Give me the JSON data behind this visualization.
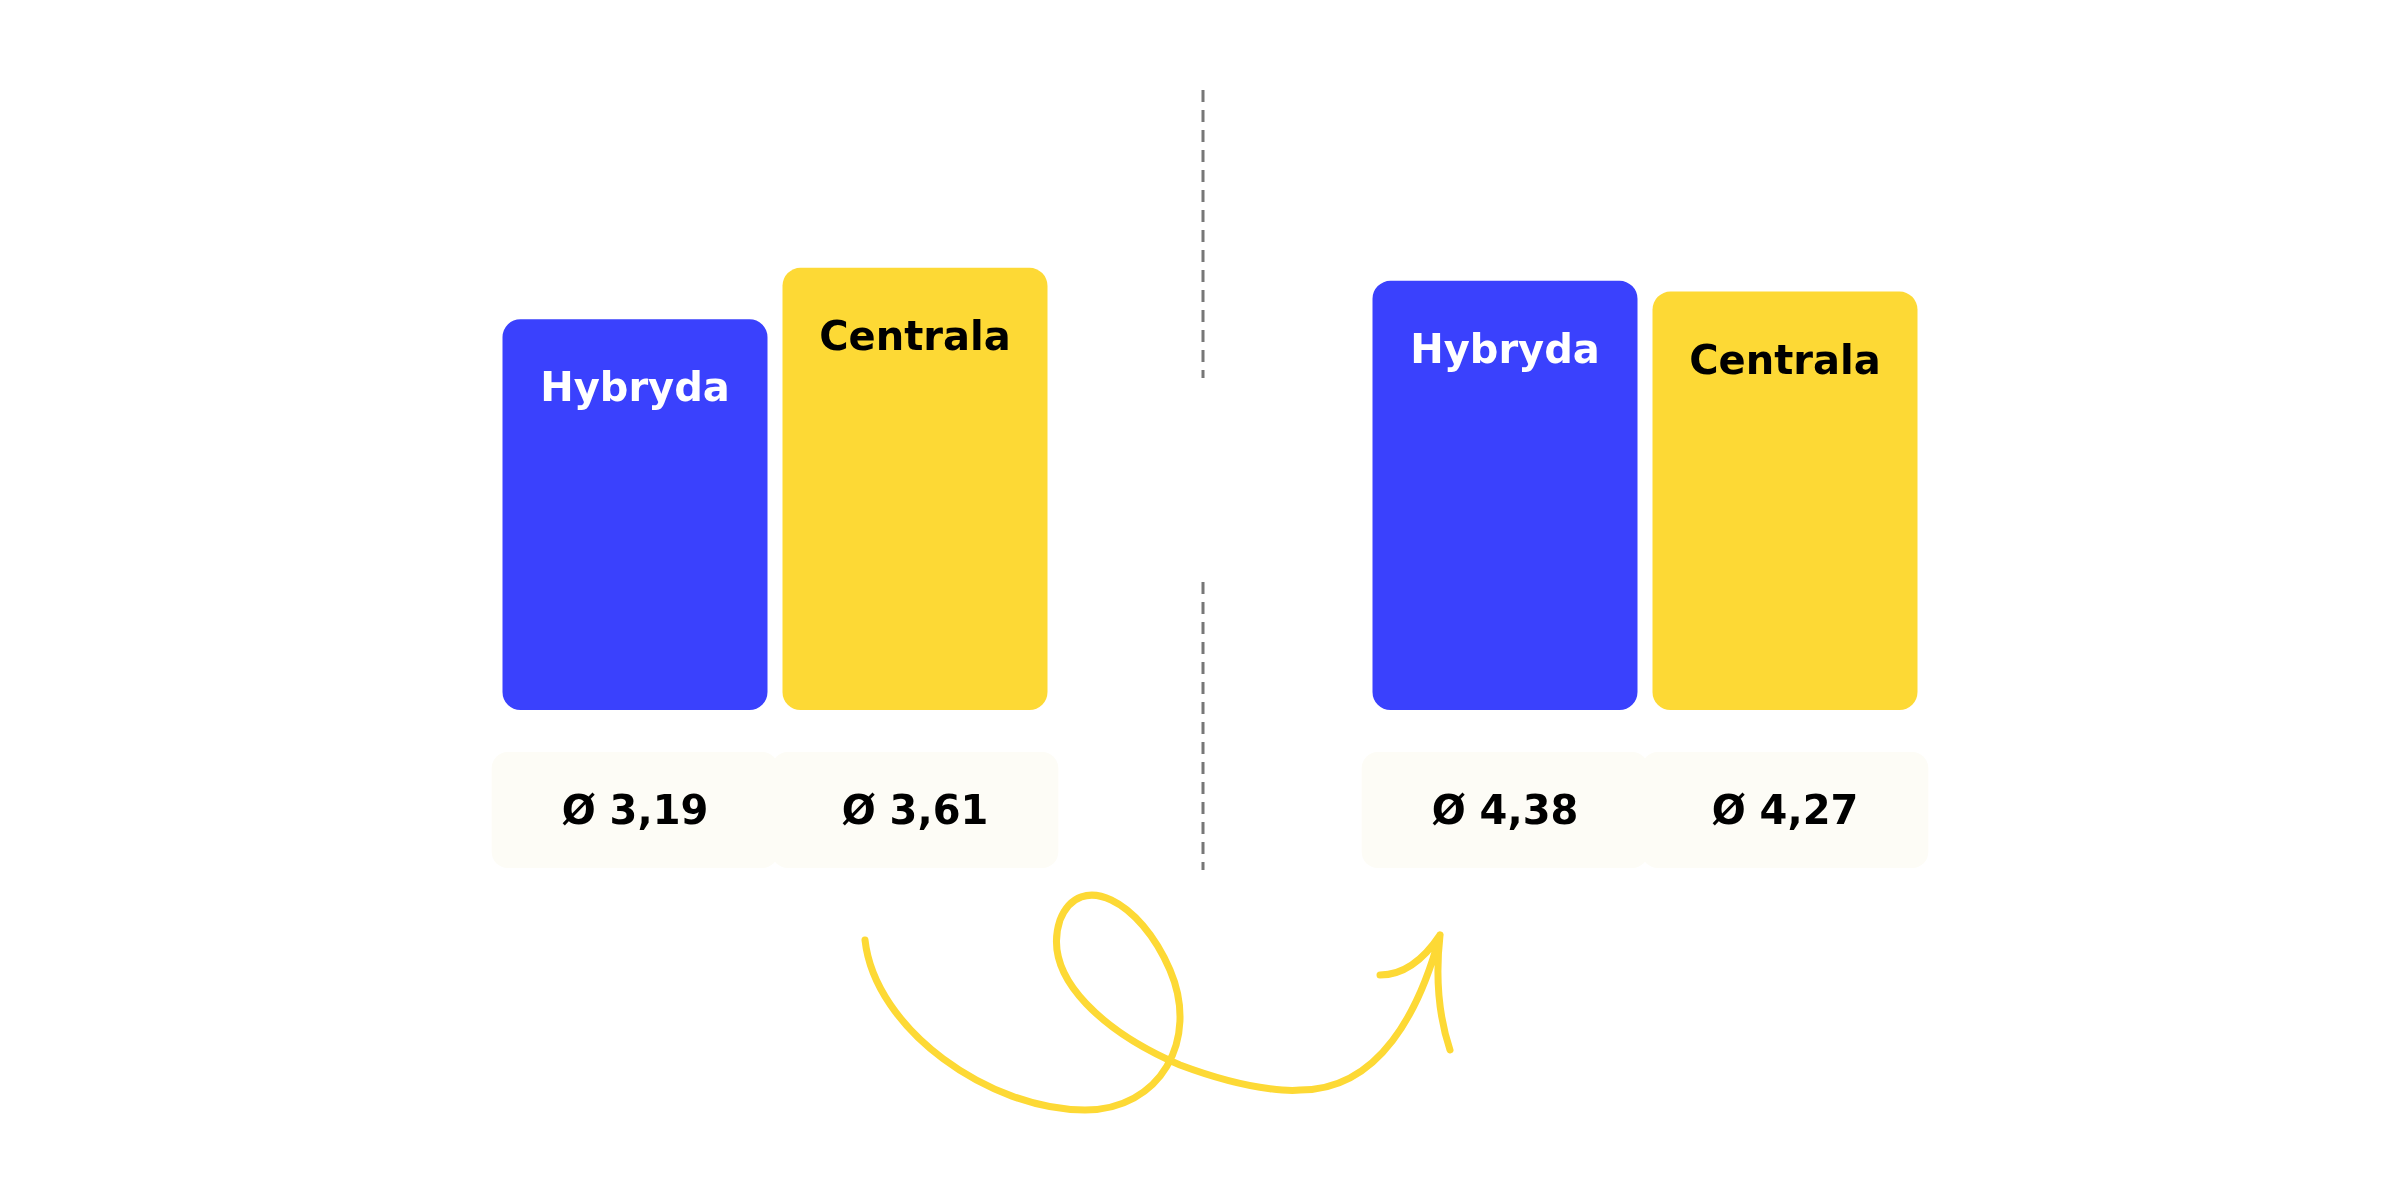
{
  "chart_data": [
    {
      "type": "bar",
      "categories": [
        "Hybryda",
        "Centrala"
      ],
      "values": [
        3.19,
        3.61
      ],
      "colors": [
        "#3a41fd",
        "#fdd935"
      ],
      "value_labels": [
        "Ø 3,19",
        "Ø 3,61"
      ]
    },
    {
      "type": "bar",
      "categories": [
        "Hybryda",
        "Centrala"
      ],
      "values": [
        4.38,
        4.27
      ],
      "colors": [
        "#3a41fd",
        "#fdd935"
      ],
      "value_labels": [
        "Ø 4,38",
        "Ø 4,27"
      ]
    }
  ]
}
